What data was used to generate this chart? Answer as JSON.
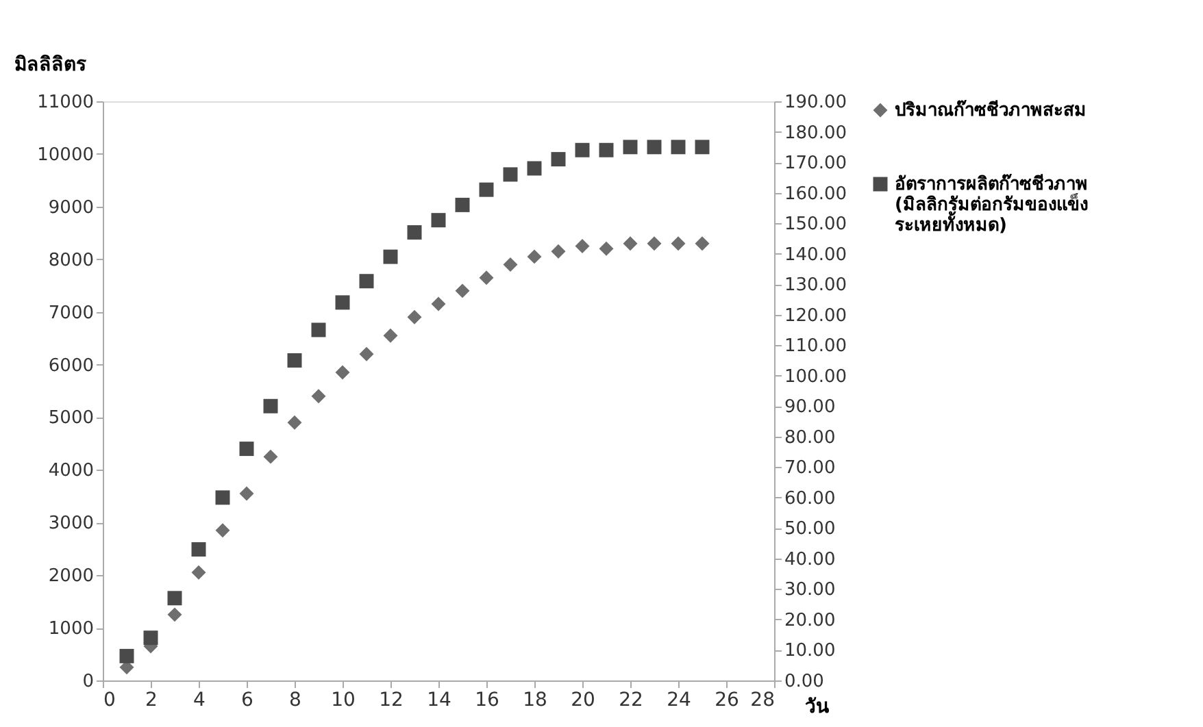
{
  "chart_data": {
    "type": "scatter",
    "xlabel": "วัน",
    "ylabel": "มิลลิลิตร",
    "legend": "right",
    "x": [
      1,
      2,
      3,
      4,
      5,
      6,
      7,
      8,
      9,
      10,
      11,
      12,
      13,
      14,
      15,
      16,
      17,
      18,
      19,
      20,
      21,
      22,
      23,
      24,
      25
    ],
    "series": [
      {
        "name": "ปริมาณก๊าซชีวภาพสะสม",
        "color": "#6e6e6e",
        "marker": "diamond",
        "values": [
          250,
          650,
          1250,
          2050,
          2850,
          3550,
          4250,
          4900,
          5400,
          5850,
          6200,
          6550,
          6900,
          7150,
          7400,
          7650,
          7900,
          8050,
          8150,
          8250,
          8200,
          8300,
          8300,
          8300,
          8300
        ]
      },
      {
        "name": "อัตราการผลิตก๊าซชีวภาพ (มิลลิกรัมต่อกรัมของแข็ง ระเหยทั้งหมด)",
        "color": "#4a4a4a",
        "marker": "square",
        "axis": "y2",
        "values": [
          8,
          14,
          27,
          43,
          60,
          76,
          90,
          105,
          115,
          124,
          131,
          139,
          147,
          151,
          156,
          161,
          166,
          168,
          171,
          174,
          174,
          175,
          175,
          175,
          175
        ]
      }
    ],
    "xlim": [
      0,
      28
    ],
    "xticks": [
      0,
      2,
      4,
      6,
      8,
      10,
      12,
      14,
      16,
      18,
      20,
      22,
      24,
      26,
      28
    ],
    "ylim": [
      0,
      11000
    ],
    "yticks": [
      0,
      1000,
      2000,
      3000,
      4000,
      5000,
      6000,
      7000,
      8000,
      9000,
      10000,
      11000
    ],
    "y2lim": [
      0,
      190
    ],
    "y2ticks": [
      {
        "value": 0,
        "label": "0.00"
      },
      {
        "value": 10,
        "label": "10.00"
      },
      {
        "value": 20,
        "label": "20.00"
      },
      {
        "value": 30,
        "label": "30.00"
      },
      {
        "value": 40,
        "label": "40.00"
      },
      {
        "value": 50,
        "label": "50.00"
      },
      {
        "value": 60,
        "label": "60.00"
      },
      {
        "value": 70,
        "label": "70.00"
      },
      {
        "value": 80,
        "label": "80.00"
      },
      {
        "value": 90,
        "label": "90.00"
      },
      {
        "value": 100,
        "label": "100.00"
      },
      {
        "value": 110,
        "label": "110.00"
      },
      {
        "value": 120,
        "label": "120.00"
      },
      {
        "value": 130,
        "label": "130.00"
      },
      {
        "value": 140,
        "label": "140.00"
      },
      {
        "value": 150,
        "label": "150.00"
      },
      {
        "value": 160,
        "label": "160.00"
      },
      {
        "value": 170,
        "label": "170.00"
      },
      {
        "value": 180,
        "label": "180.00"
      },
      {
        "value": 190,
        "label": "190.00"
      }
    ],
    "grid": false
  }
}
